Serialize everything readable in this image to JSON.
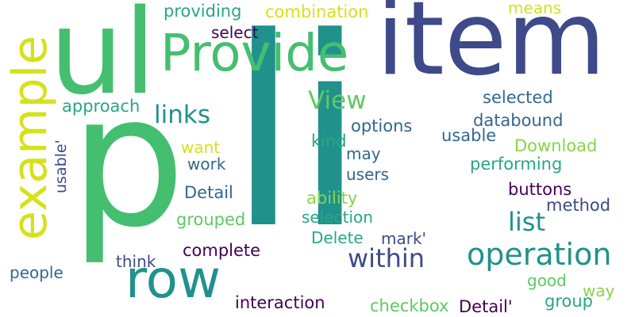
{
  "words": [
    {
      "text": "li",
      "color": "#21918c"
    },
    {
      "text": "item",
      "color": "#3e4a89"
    },
    {
      "text": "p",
      "color": "#44bf70"
    },
    {
      "text": "ul",
      "color": "#44bf70"
    },
    {
      "text": "example",
      "color": "#d5e21a"
    },
    {
      "text": "Provide",
      "color": "#44bf70"
    },
    {
      "text": "row",
      "color": "#21918c"
    },
    {
      "text": "operation",
      "color": "#21918c"
    },
    {
      "text": "within",
      "color": "#3e4a89"
    },
    {
      "text": "list",
      "color": "#21918c"
    },
    {
      "text": "links",
      "color": "#21918c"
    },
    {
      "text": "View",
      "color": "#5ec962"
    },
    {
      "text": "combination",
      "color": "#d5e21a"
    },
    {
      "text": "providing",
      "color": "#26a784"
    },
    {
      "text": "select",
      "color": "#440154"
    },
    {
      "text": "means",
      "color": "#d5e21a"
    },
    {
      "text": "approach",
      "color": "#26a784"
    },
    {
      "text": "usable'",
      "color": "#3e4a89"
    },
    {
      "text": "selected",
      "color": "#31688e"
    },
    {
      "text": "options",
      "color": "#31688e"
    },
    {
      "text": "databound",
      "color": "#31688e"
    },
    {
      "text": "usable",
      "color": "#31688e"
    },
    {
      "text": "kind",
      "color": "#26a784"
    },
    {
      "text": "want",
      "color": "#d5e21a"
    },
    {
      "text": "may",
      "color": "#31688e"
    },
    {
      "text": "Download",
      "color": "#86d549"
    },
    {
      "text": "work",
      "color": "#31688e"
    },
    {
      "text": "users",
      "color": "#31688e"
    },
    {
      "text": "performing",
      "color": "#26a784"
    },
    {
      "text": "Detail",
      "color": "#31688e"
    },
    {
      "text": "ability",
      "color": "#86d549"
    },
    {
      "text": "buttons",
      "color": "#440154"
    },
    {
      "text": "grouped",
      "color": "#5ec962"
    },
    {
      "text": "selection",
      "color": "#26a784"
    },
    {
      "text": "method",
      "color": "#3e4a89"
    },
    {
      "text": "Delete",
      "color": "#26a784"
    },
    {
      "text": "mark'",
      "color": "#3e4a89"
    },
    {
      "text": "complete",
      "color": "#440154"
    },
    {
      "text": "think",
      "color": "#3e4a89"
    },
    {
      "text": "people",
      "color": "#31688e"
    },
    {
      "text": "good",
      "color": "#5ec962"
    },
    {
      "text": "way",
      "color": "#86d549"
    },
    {
      "text": "interaction",
      "color": "#440154"
    },
    {
      "text": "checkbox",
      "color": "#5ec962"
    },
    {
      "text": "Detail'",
      "color": "#440154"
    },
    {
      "text": "group",
      "color": "#26a784"
    }
  ]
}
